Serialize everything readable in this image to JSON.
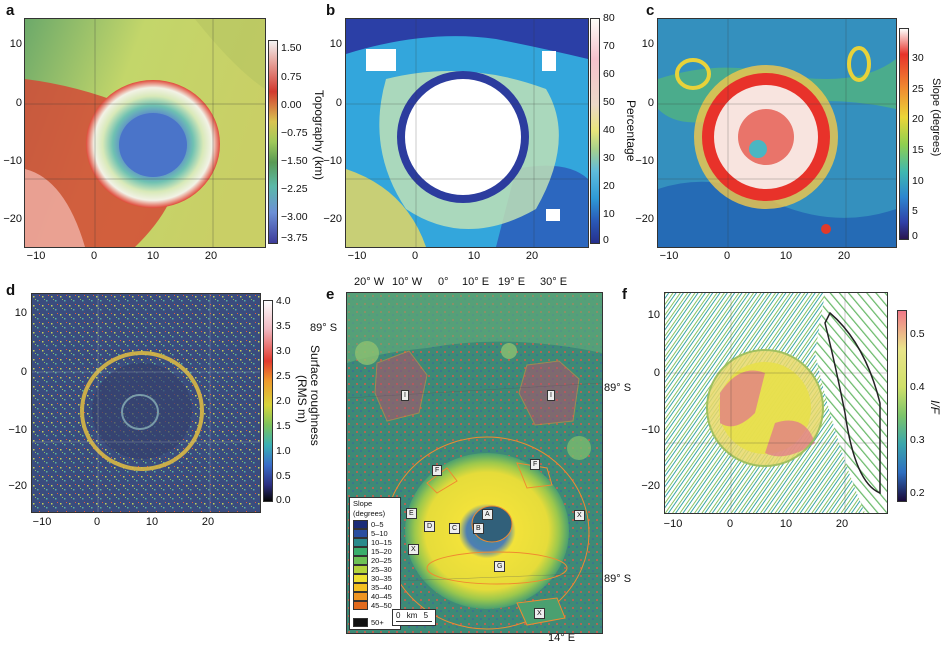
{
  "panels": {
    "a": {
      "letter": "a",
      "x_ticks": [
        "−10",
        "0",
        "10",
        "20"
      ],
      "y_ticks": [
        "10",
        "0",
        "−10",
        "−20"
      ],
      "colorbar": {
        "title": "Topography (km)",
        "ticks": [
          "1.50",
          "0.75",
          "0.00",
          "−0.75",
          "−1.50",
          "−2.25",
          "−3.00",
          "−3.75"
        ]
      }
    },
    "b": {
      "letter": "b",
      "x_ticks": [
        "−10",
        "0",
        "10",
        "20"
      ],
      "y_ticks": [
        "10",
        "0",
        "−10",
        "−20"
      ],
      "colorbar": {
        "title": "Percentage",
        "ticks": [
          "80",
          "70",
          "60",
          "50",
          "40",
          "30",
          "20",
          "10",
          "0"
        ]
      }
    },
    "c": {
      "letter": "c",
      "x_ticks": [
        "−10",
        "0",
        "10",
        "20"
      ],
      "y_ticks": [
        "10",
        "0",
        "−10",
        "−20"
      ],
      "colorbar": {
        "title": "Slope (degrees)",
        "ticks": [
          "30",
          "25",
          "20",
          "15",
          "10",
          "5",
          "0"
        ]
      }
    },
    "d": {
      "letter": "d",
      "x_ticks": [
        "−10",
        "0",
        "10",
        "20"
      ],
      "y_ticks": [
        "10",
        "0",
        "−10",
        "−20"
      ],
      "colorbar": {
        "title_line1": "Surface roughness",
        "title_line2": "(RMS m)",
        "ticks": [
          "4.0",
          "3.5",
          "3.0",
          "2.5",
          "2.0",
          "1.5",
          "1.0",
          "0.5",
          "0.0"
        ]
      }
    },
    "e": {
      "letter": "e",
      "top_labels": [
        "20° W",
        "10° W",
        "0°",
        "10° E",
        "19° E",
        "30° E"
      ],
      "side_labels": {
        "upper_left": "89° S",
        "mid_right": "89° S",
        "low_right": "89° S",
        "bottom": "14° E"
      },
      "legend": {
        "title_line1": "Slope",
        "title_line2": "(degrees)",
        "entries": [
          {
            "label": "0–5",
            "color": "#1b2c78"
          },
          {
            "label": "5–10",
            "color": "#2a4ea0"
          },
          {
            "label": "10–15",
            "color": "#2a8a8c"
          },
          {
            "label": "15–20",
            "color": "#3aae6c"
          },
          {
            "label": "20–25",
            "color": "#6ec255"
          },
          {
            "label": "25–30",
            "color": "#b5d43c"
          },
          {
            "label": "30–35",
            "color": "#f0e030"
          },
          {
            "label": "35–40",
            "color": "#f5c022"
          },
          {
            "label": "40–45",
            "color": "#ee9422"
          },
          {
            "label": "45–50",
            "color": "#e06a1e"
          },
          {
            "label": "50+",
            "color": "#111111"
          }
        ]
      },
      "scalebar": {
        "l0": "0",
        "unit": "km",
        "l5": "5"
      },
      "region_labels": [
        "I",
        "I",
        "F",
        "F",
        "E",
        "D",
        "C",
        "B",
        "A",
        "G",
        "X",
        "X",
        "X"
      ]
    },
    "f": {
      "letter": "f",
      "x_ticks": [
        "−10",
        "0",
        "10",
        "20"
      ],
      "y_ticks": [
        "10",
        "0",
        "−10",
        "−20"
      ],
      "colorbar": {
        "title": "I/F",
        "ticks": [
          "0.5",
          "0.4",
          "0.3",
          "0.2"
        ]
      }
    }
  }
}
